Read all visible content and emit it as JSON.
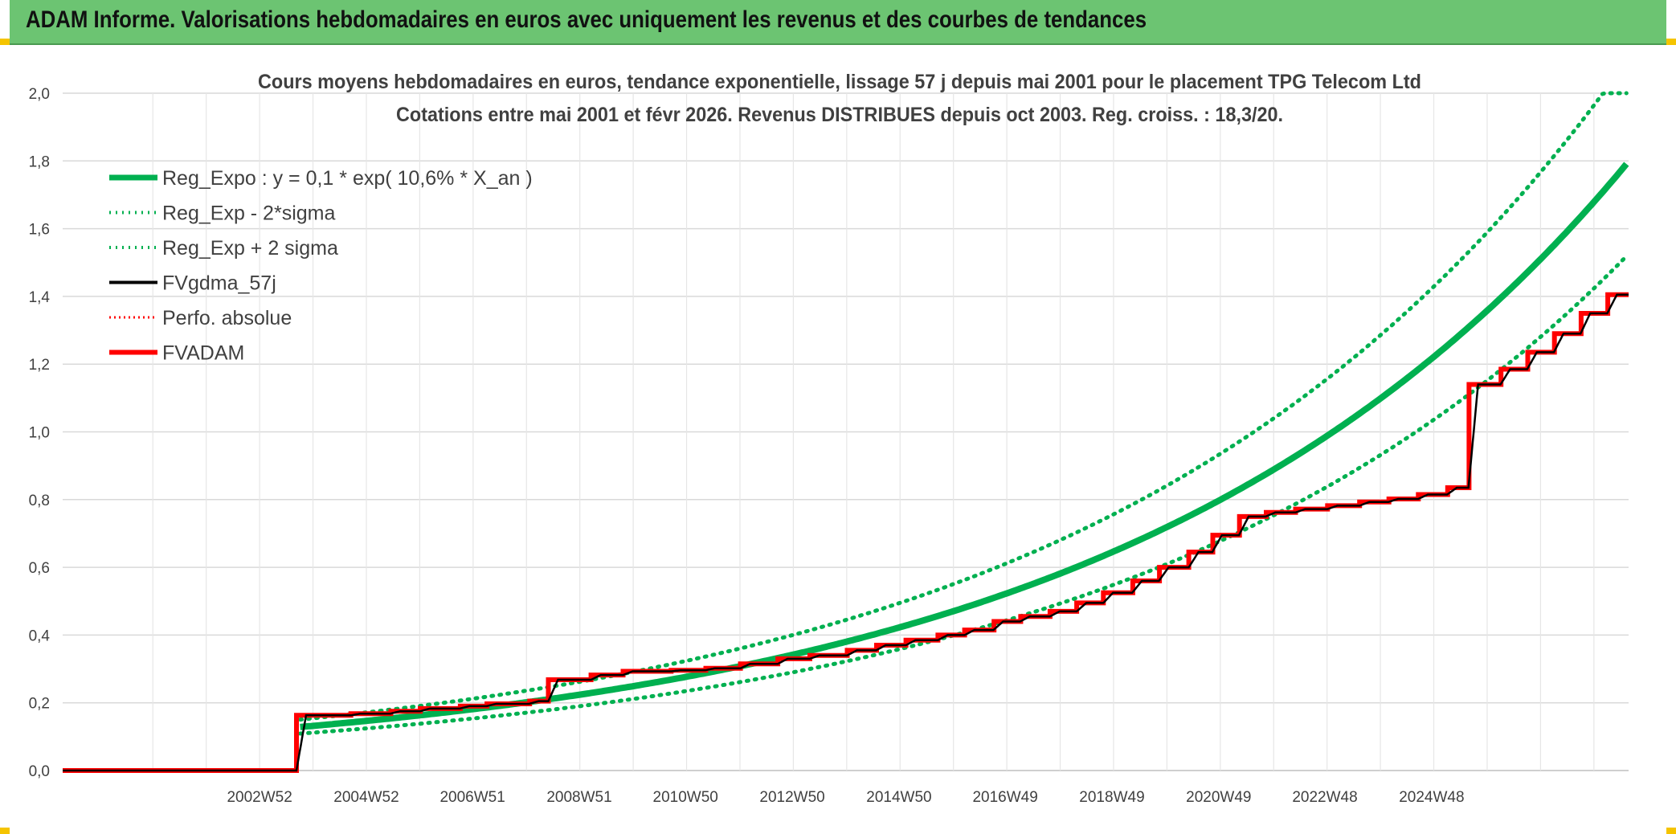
{
  "banner": {
    "title": "ADAM Informe. Valorisations hebdomadaires en euros avec uniquement les revenus et des courbes de tendances"
  },
  "colors": {
    "green": "#00b050",
    "black": "#000000",
    "red": "#ff0000",
    "grid": "#d9d9d9",
    "banner": "#6cc472"
  },
  "chart_data": {
    "type": "line",
    "title_line1": "Cours moyens hebdomadaires en euros, tendance exponentielle, lissage 57 j depuis mai 2001 pour le placement TPG Telecom Ltd",
    "title_line2": "Cotations entre mai 2001 et févr 2026. Revenus DISTRIBUES depuis oct 2003. Reg. croiss. : 18,3/20.",
    "x_range": [
      1999.3,
      2028.64
    ],
    "ylim": [
      0,
      2.0
    ],
    "y_ticks": [
      "0,0",
      "0,2",
      "0,4",
      "0,6",
      "0,8",
      "1,0",
      "1,2",
      "1,4",
      "1,6",
      "1,8",
      "2,0"
    ],
    "x_tick_labels": [
      "2002W52",
      "2004W52",
      "2006W51",
      "2008W51",
      "2010W50",
      "2012W50",
      "2014W50",
      "2016W49",
      "2018W49",
      "2020W49",
      "2022W48",
      "2024W48"
    ],
    "x_tick_positions": [
      2002.99,
      2004.99,
      2006.98,
      2008.98,
      2010.97,
      2012.97,
      2014.97,
      2016.96,
      2018.96,
      2020.96,
      2022.95,
      2024.95
    ],
    "grid": true,
    "legend_position": "top-left",
    "regression": {
      "a": 0.1,
      "rate": 0.106,
      "origin": 2001.38,
      "start": 2003.75,
      "end": 2026.12
    },
    "band": {
      "lower_factor": 0.848,
      "upper_factor": 1.17
    },
    "series": [
      {
        "name": "Reg_Expo : y = 0,1 * exp( 10,6% *  X_an )",
        "style": "green-solid"
      },
      {
        "name": "Reg_Exp - 2*sigma",
        "style": "green-dotted"
      },
      {
        "name": "Reg_Exp + 2 sigma",
        "style": "green-dotted"
      },
      {
        "name": "FVgdma_57j",
        "style": "black-solid"
      },
      {
        "name": "Perfo. absolue",
        "style": "red-dotted"
      },
      {
        "name": "FVADAM",
        "style": "red-solid",
        "steps": [
          [
            1999.3,
            0.0
          ],
          [
            2003.68,
            0.163
          ],
          [
            2004.7,
            0.168
          ],
          [
            2005.45,
            0.175
          ],
          [
            2006.0,
            0.183
          ],
          [
            2006.75,
            0.19
          ],
          [
            2007.25,
            0.197
          ],
          [
            2008.05,
            0.205
          ],
          [
            2008.4,
            0.268
          ],
          [
            2009.2,
            0.282
          ],
          [
            2009.8,
            0.293
          ],
          [
            2010.7,
            0.296
          ],
          [
            2011.35,
            0.302
          ],
          [
            2012.0,
            0.315
          ],
          [
            2012.7,
            0.33
          ],
          [
            2013.3,
            0.34
          ],
          [
            2014.0,
            0.355
          ],
          [
            2014.55,
            0.37
          ],
          [
            2015.1,
            0.385
          ],
          [
            2015.7,
            0.4
          ],
          [
            2016.2,
            0.415
          ],
          [
            2016.75,
            0.44
          ],
          [
            2017.25,
            0.455
          ],
          [
            2017.8,
            0.47
          ],
          [
            2018.3,
            0.495
          ],
          [
            2018.8,
            0.525
          ],
          [
            2019.35,
            0.56
          ],
          [
            2019.85,
            0.6
          ],
          [
            2020.4,
            0.645
          ],
          [
            2020.85,
            0.695
          ],
          [
            2021.35,
            0.75
          ],
          [
            2021.85,
            0.762
          ],
          [
            2022.4,
            0.772
          ],
          [
            2023.0,
            0.782
          ],
          [
            2023.6,
            0.793
          ],
          [
            2024.15,
            0.802
          ],
          [
            2024.7,
            0.815
          ],
          [
            2025.25,
            0.835
          ],
          [
            2025.65,
            1.14
          ],
          [
            2026.25,
            1.185
          ],
          [
            2026.75,
            1.235
          ],
          [
            2027.25,
            1.29
          ],
          [
            2027.75,
            1.35
          ],
          [
            2028.25,
            1.405
          ]
        ]
      }
    ]
  }
}
